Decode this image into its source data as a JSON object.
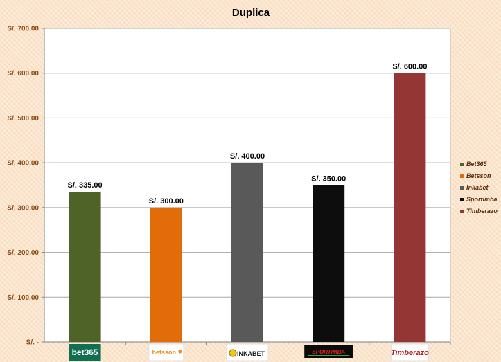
{
  "chart_data": {
    "type": "bar",
    "title": "Duplica",
    "categories": [
      "Bet365",
      "Betsson",
      "Inkabet",
      "Sportimba",
      "Timberazo"
    ],
    "values": [
      335,
      300,
      400,
      350,
      600
    ],
    "data_labels": [
      "S/. 335.00",
      "S/. 300.00",
      "S/. 400.00",
      "S/. 350.00",
      "S/. 600.00"
    ],
    "ylim": [
      0,
      700
    ],
    "yticks": [
      0,
      100,
      200,
      300,
      400,
      500,
      600,
      700
    ],
    "ytick_labels": [
      "S/. -",
      "S/. 100.00",
      "S/. 200.00",
      "S/. 300.00",
      "S/. 400.00",
      "S/. 500.00",
      "S/. 600.00",
      "S/. 700.00"
    ],
    "colors": [
      "#4f6228",
      "#e26b0a",
      "#595959",
      "#0d0d0d",
      "#943634"
    ],
    "legend": [
      "Bet365",
      "Betsson",
      "Inkabet",
      "Sportimba",
      "Timberazo"
    ],
    "legend_position": "right",
    "grid": true,
    "x_tick_logos": [
      {
        "name": "bet365-logo",
        "text": "bet365"
      },
      {
        "name": "betsson-logo",
        "text": "betsson"
      },
      {
        "name": "inkabet-logo",
        "text": "INKABET"
      },
      {
        "name": "sportimba-logo",
        "text": "SPORTIMBA"
      },
      {
        "name": "timberazo-logo",
        "text": "Timberazo"
      }
    ]
  }
}
